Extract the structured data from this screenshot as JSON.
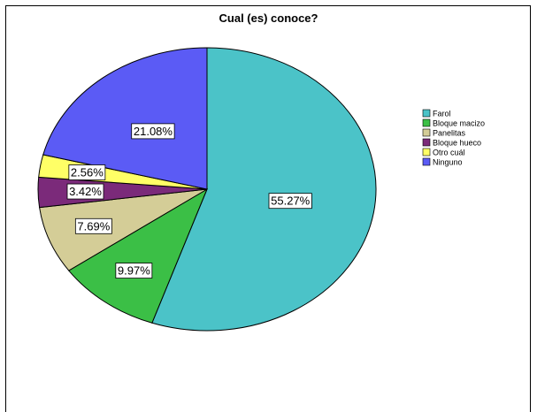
{
  "chart_data": {
    "type": "pie",
    "title": "Cual (es) conoce?",
    "slices": [
      {
        "name": "Farol",
        "value": 55.27,
        "label": "55.27%",
        "color": "#4bc3c8"
      },
      {
        "name": "Bloque macizo",
        "value": 9.97,
        "label": "9.97%",
        "color": "#3bbf46"
      },
      {
        "name": "Panelitas",
        "value": 7.69,
        "label": "7.69%",
        "color": "#d4cd97"
      },
      {
        "name": "Bloque hueco",
        "value": 3.42,
        "label": "3.42%",
        "color": "#7b2a7a"
      },
      {
        "name": "Otro cuál",
        "value": 2.56,
        "label": "2.56%",
        "color": "#ffff66"
      },
      {
        "name": "Ninguno",
        "value": 21.08,
        "label": "21.08%",
        "color": "#5b5bf5"
      }
    ],
    "legend_position": "right"
  }
}
